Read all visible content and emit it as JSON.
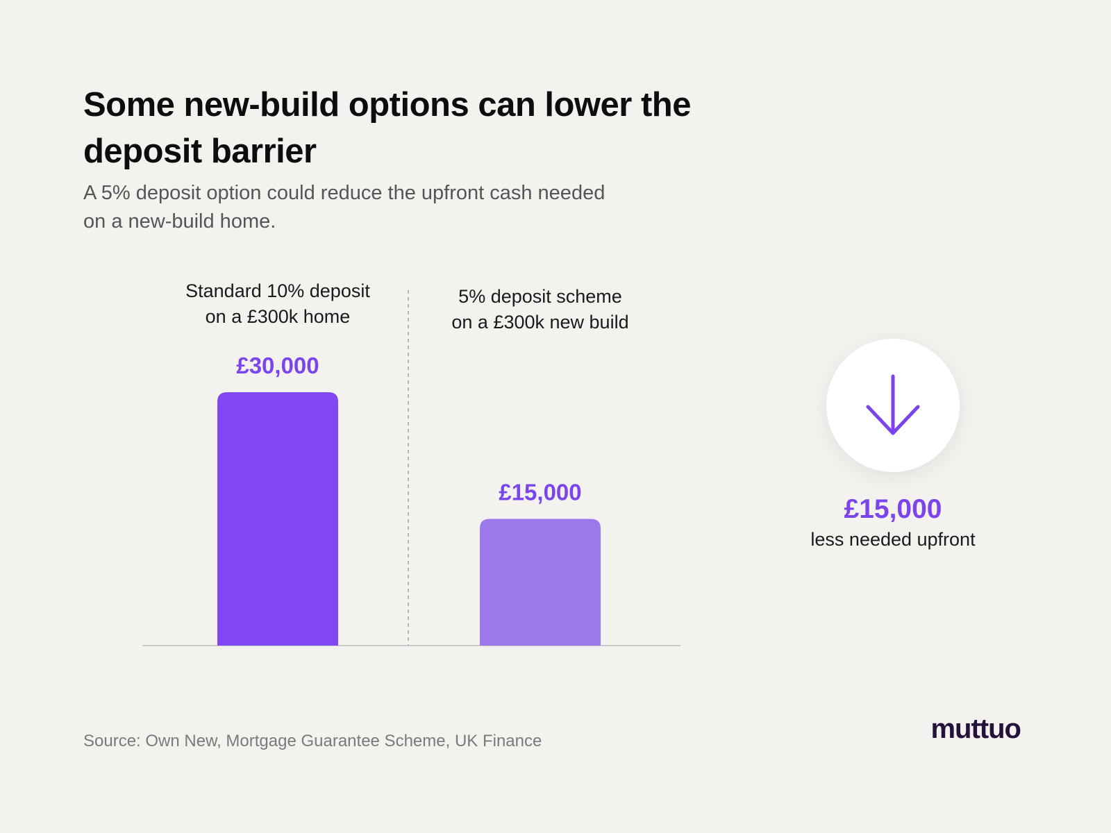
{
  "title": "Some new-build options can lower the deposit barrier",
  "subtitle": "A 5% deposit option could reduce the upfront cash needed on a new-build home.",
  "chart_data": {
    "type": "bar",
    "categories": [
      [
        "Standard 10% deposit",
        "on a £300k home"
      ],
      [
        "5% deposit scheme",
        "on a £300k new build"
      ]
    ],
    "values": [
      30000,
      15000
    ],
    "value_labels": [
      "£30,000",
      "£15,000"
    ],
    "bar_colors": [
      "#8047f2",
      "#9c79eb"
    ],
    "value_label_color": "#7c45ec",
    "ylim": [
      0,
      30000
    ],
    "grid": false,
    "xlabel": "",
    "ylabel": ""
  },
  "callout": {
    "icon": "arrow-down-icon",
    "value": "£15,000",
    "text": "less needed upfront",
    "color": "#7c45ec"
  },
  "source": "Source: Own New, Mortgage Guarantee Scheme, UK Finance",
  "logo": "muttuo"
}
